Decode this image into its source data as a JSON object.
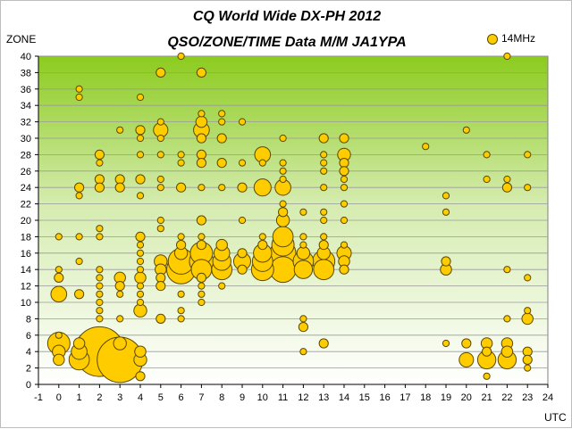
{
  "chart_data": {
    "type": "scatter",
    "title": "CQ World Wide DX-PH 2012",
    "subtitle": "QSO/ZONE/TIME Data M/M JA1YPA",
    "xlabel": "UTC",
    "ylabel": "ZONE",
    "xlim": [
      -1,
      24
    ],
    "ylim": [
      0,
      40
    ],
    "x_ticks": [
      -1,
      0,
      1,
      2,
      3,
      4,
      5,
      6,
      7,
      8,
      9,
      10,
      11,
      12,
      13,
      14,
      15,
      16,
      17,
      18,
      19,
      20,
      21,
      22,
      23,
      24
    ],
    "y_ticks": [
      0,
      2,
      4,
      6,
      8,
      10,
      12,
      14,
      16,
      18,
      20,
      22,
      24,
      26,
      28,
      30,
      32,
      34,
      36,
      38,
      40
    ],
    "grid": "horizontal",
    "legend": "top-right",
    "background": "vertical gradient, green at top to white at bottom",
    "size_note": "bubble size proportional to QSO count",
    "series": [
      {
        "name": "14MHz",
        "color": "#ffcc00",
        "stroke": "#5a4a00",
        "points": [
          {
            "x": 0,
            "y": 18,
            "size": 1
          },
          {
            "x": 0,
            "y": 14,
            "size": 1
          },
          {
            "x": 0,
            "y": 13,
            "size": 2
          },
          {
            "x": 0,
            "y": 11,
            "size": 6
          },
          {
            "x": 0,
            "y": 6,
            "size": 1
          },
          {
            "x": 0,
            "y": 5,
            "size": 12
          },
          {
            "x": 0,
            "y": 4,
            "size": 4
          },
          {
            "x": 0,
            "y": 3,
            "size": 3
          },
          {
            "x": 1,
            "y": 36,
            "size": 1
          },
          {
            "x": 1,
            "y": 35,
            "size": 1
          },
          {
            "x": 1,
            "y": 24,
            "size": 2
          },
          {
            "x": 1,
            "y": 23,
            "size": 1
          },
          {
            "x": 1,
            "y": 18,
            "size": 1
          },
          {
            "x": 1,
            "y": 15,
            "size": 1
          },
          {
            "x": 1,
            "y": 11,
            "size": 2
          },
          {
            "x": 1,
            "y": 5,
            "size": 3
          },
          {
            "x": 1,
            "y": 4,
            "size": 6
          },
          {
            "x": 1,
            "y": 3,
            "size": 10
          },
          {
            "x": 2,
            "y": 28,
            "size": 2
          },
          {
            "x": 2,
            "y": 27,
            "size": 1
          },
          {
            "x": 2,
            "y": 25,
            "size": 2
          },
          {
            "x": 2,
            "y": 24,
            "size": 2
          },
          {
            "x": 2,
            "y": 19,
            "size": 1
          },
          {
            "x": 2,
            "y": 18,
            "size": 1
          },
          {
            "x": 2,
            "y": 14,
            "size": 1
          },
          {
            "x": 2,
            "y": 13,
            "size": 1
          },
          {
            "x": 2,
            "y": 12,
            "size": 1
          },
          {
            "x": 2,
            "y": 11,
            "size": 1
          },
          {
            "x": 2,
            "y": 10,
            "size": 1
          },
          {
            "x": 2,
            "y": 9,
            "size": 1
          },
          {
            "x": 2,
            "y": 8,
            "size": 1
          },
          {
            "x": 2,
            "y": 4,
            "size": 60
          },
          {
            "x": 3,
            "y": 31,
            "size": 1
          },
          {
            "x": 3,
            "y": 25,
            "size": 2
          },
          {
            "x": 3,
            "y": 24,
            "size": 2
          },
          {
            "x": 3,
            "y": 13,
            "size": 3
          },
          {
            "x": 3,
            "y": 12,
            "size": 2
          },
          {
            "x": 3,
            "y": 11,
            "size": 1
          },
          {
            "x": 3,
            "y": 8,
            "size": 1
          },
          {
            "x": 3,
            "y": 5,
            "size": 4
          },
          {
            "x": 3,
            "y": 3,
            "size": 50
          },
          {
            "x": 4,
            "y": 35,
            "size": 1
          },
          {
            "x": 4,
            "y": 31,
            "size": 2
          },
          {
            "x": 4,
            "y": 30,
            "size": 1
          },
          {
            "x": 4,
            "y": 28,
            "size": 1
          },
          {
            "x": 4,
            "y": 25,
            "size": 2
          },
          {
            "x": 4,
            "y": 23,
            "size": 1
          },
          {
            "x": 4,
            "y": 18,
            "size": 2
          },
          {
            "x": 4,
            "y": 17,
            "size": 1
          },
          {
            "x": 4,
            "y": 16,
            "size": 1
          },
          {
            "x": 4,
            "y": 15,
            "size": 1
          },
          {
            "x": 4,
            "y": 14,
            "size": 1
          },
          {
            "x": 4,
            "y": 13,
            "size": 3
          },
          {
            "x": 4,
            "y": 12,
            "size": 1
          },
          {
            "x": 4,
            "y": 11,
            "size": 1
          },
          {
            "x": 4,
            "y": 10,
            "size": 1
          },
          {
            "x": 4,
            "y": 9,
            "size": 4
          },
          {
            "x": 4,
            "y": 4,
            "size": 3
          },
          {
            "x": 4,
            "y": 3,
            "size": 4
          },
          {
            "x": 4,
            "y": 1,
            "size": 2
          },
          {
            "x": 5,
            "y": 38,
            "size": 2
          },
          {
            "x": 5,
            "y": 32,
            "size": 1
          },
          {
            "x": 5,
            "y": 31,
            "size": 5
          },
          {
            "x": 5,
            "y": 30,
            "size": 1
          },
          {
            "x": 5,
            "y": 28,
            "size": 1
          },
          {
            "x": 5,
            "y": 25,
            "size": 1
          },
          {
            "x": 5,
            "y": 24,
            "size": 1
          },
          {
            "x": 5,
            "y": 20,
            "size": 1
          },
          {
            "x": 5,
            "y": 19,
            "size": 1
          },
          {
            "x": 5,
            "y": 15,
            "size": 4
          },
          {
            "x": 5,
            "y": 14,
            "size": 3
          },
          {
            "x": 5,
            "y": 13,
            "size": 2
          },
          {
            "x": 5,
            "y": 12,
            "size": 2
          },
          {
            "x": 5,
            "y": 8,
            "size": 2
          },
          {
            "x": 6,
            "y": 40,
            "size": 1
          },
          {
            "x": 6,
            "y": 28,
            "size": 1
          },
          {
            "x": 6,
            "y": 27,
            "size": 1
          },
          {
            "x": 6,
            "y": 24,
            "size": 2
          },
          {
            "x": 6,
            "y": 18,
            "size": 1
          },
          {
            "x": 6,
            "y": 17,
            "size": 2
          },
          {
            "x": 6,
            "y": 16,
            "size": 4
          },
          {
            "x": 6,
            "y": 15,
            "size": 16
          },
          {
            "x": 6,
            "y": 14,
            "size": 20
          },
          {
            "x": 6,
            "y": 11,
            "size": 1
          },
          {
            "x": 6,
            "y": 9,
            "size": 1
          },
          {
            "x": 6,
            "y": 8,
            "size": 1
          },
          {
            "x": 7,
            "y": 38,
            "size": 2
          },
          {
            "x": 7,
            "y": 33,
            "size": 1
          },
          {
            "x": 7,
            "y": 32,
            "size": 3
          },
          {
            "x": 7,
            "y": 31,
            "size": 6
          },
          {
            "x": 7,
            "y": 30,
            "size": 2
          },
          {
            "x": 7,
            "y": 28,
            "size": 2
          },
          {
            "x": 7,
            "y": 27,
            "size": 2
          },
          {
            "x": 7,
            "y": 24,
            "size": 1
          },
          {
            "x": 7,
            "y": 20,
            "size": 2
          },
          {
            "x": 7,
            "y": 18,
            "size": 1
          },
          {
            "x": 7,
            "y": 17,
            "size": 2
          },
          {
            "x": 7,
            "y": 16,
            "size": 12
          },
          {
            "x": 7,
            "y": 15,
            "size": 14
          },
          {
            "x": 7,
            "y": 14,
            "size": 10
          },
          {
            "x": 7,
            "y": 13,
            "size": 2
          },
          {
            "x": 7,
            "y": 12,
            "size": 1
          },
          {
            "x": 7,
            "y": 11,
            "size": 1
          },
          {
            "x": 7,
            "y": 10,
            "size": 1
          },
          {
            "x": 8,
            "y": 33,
            "size": 1
          },
          {
            "x": 8,
            "y": 32,
            "size": 1
          },
          {
            "x": 8,
            "y": 30,
            "size": 2
          },
          {
            "x": 8,
            "y": 27,
            "size": 2
          },
          {
            "x": 8,
            "y": 24,
            "size": 1
          },
          {
            "x": 8,
            "y": 17,
            "size": 3
          },
          {
            "x": 8,
            "y": 16,
            "size": 6
          },
          {
            "x": 8,
            "y": 15,
            "size": 8
          },
          {
            "x": 8,
            "y": 14,
            "size": 10
          },
          {
            "x": 8,
            "y": 12,
            "size": 1
          },
          {
            "x": 9,
            "y": 32,
            "size": 1
          },
          {
            "x": 9,
            "y": 27,
            "size": 1
          },
          {
            "x": 9,
            "y": 24,
            "size": 2
          },
          {
            "x": 9,
            "y": 20,
            "size": 1
          },
          {
            "x": 9,
            "y": 16,
            "size": 2
          },
          {
            "x": 9,
            "y": 15,
            "size": 7
          },
          {
            "x": 9,
            "y": 14,
            "size": 2
          },
          {
            "x": 10,
            "y": 28,
            "size": 6
          },
          {
            "x": 10,
            "y": 27,
            "size": 1
          },
          {
            "x": 10,
            "y": 24,
            "size": 7
          },
          {
            "x": 10,
            "y": 18,
            "size": 1
          },
          {
            "x": 10,
            "y": 17,
            "size": 2
          },
          {
            "x": 10,
            "y": 16,
            "size": 8
          },
          {
            "x": 10,
            "y": 15,
            "size": 10
          },
          {
            "x": 10,
            "y": 14,
            "size": 12
          },
          {
            "x": 11,
            "y": 30,
            "size": 1
          },
          {
            "x": 11,
            "y": 27,
            "size": 1
          },
          {
            "x": 11,
            "y": 26,
            "size": 1
          },
          {
            "x": 11,
            "y": 25,
            "size": 1
          },
          {
            "x": 11,
            "y": 24,
            "size": 6
          },
          {
            "x": 11,
            "y": 22,
            "size": 1
          },
          {
            "x": 11,
            "y": 21,
            "size": 2
          },
          {
            "x": 11,
            "y": 20,
            "size": 4
          },
          {
            "x": 11,
            "y": 18,
            "size": 10
          },
          {
            "x": 11,
            "y": 17,
            "size": 12
          },
          {
            "x": 11,
            "y": 16,
            "size": 16
          },
          {
            "x": 11,
            "y": 15,
            "size": 22
          },
          {
            "x": 11,
            "y": 14,
            "size": 16
          },
          {
            "x": 12,
            "y": 21,
            "size": 1
          },
          {
            "x": 12,
            "y": 18,
            "size": 1
          },
          {
            "x": 12,
            "y": 17,
            "size": 1
          },
          {
            "x": 12,
            "y": 16,
            "size": 4
          },
          {
            "x": 12,
            "y": 15,
            "size": 10
          },
          {
            "x": 12,
            "y": 14,
            "size": 8
          },
          {
            "x": 12,
            "y": 8,
            "size": 1
          },
          {
            "x": 12,
            "y": 7,
            "size": 2
          },
          {
            "x": 12,
            "y": 4,
            "size": 1
          },
          {
            "x": 13,
            "y": 30,
            "size": 2
          },
          {
            "x": 13,
            "y": 28,
            "size": 1
          },
          {
            "x": 13,
            "y": 27,
            "size": 1
          },
          {
            "x": 13,
            "y": 26,
            "size": 1
          },
          {
            "x": 13,
            "y": 24,
            "size": 1
          },
          {
            "x": 13,
            "y": 21,
            "size": 1
          },
          {
            "x": 13,
            "y": 20,
            "size": 1
          },
          {
            "x": 13,
            "y": 18,
            "size": 1
          },
          {
            "x": 13,
            "y": 17,
            "size": 2
          },
          {
            "x": 13,
            "y": 16,
            "size": 4
          },
          {
            "x": 13,
            "y": 15,
            "size": 12
          },
          {
            "x": 13,
            "y": 14,
            "size": 10
          },
          {
            "x": 13,
            "y": 5,
            "size": 2
          },
          {
            "x": 14,
            "y": 30,
            "size": 2
          },
          {
            "x": 14,
            "y": 28,
            "size": 4
          },
          {
            "x": 14,
            "y": 27,
            "size": 2
          },
          {
            "x": 14,
            "y": 26,
            "size": 2
          },
          {
            "x": 14,
            "y": 25,
            "size": 1
          },
          {
            "x": 14,
            "y": 24,
            "size": 1
          },
          {
            "x": 14,
            "y": 22,
            "size": 1
          },
          {
            "x": 14,
            "y": 20,
            "size": 1
          },
          {
            "x": 14,
            "y": 17,
            "size": 1
          },
          {
            "x": 14,
            "y": 16,
            "size": 5
          },
          {
            "x": 14,
            "y": 15,
            "size": 3
          },
          {
            "x": 14,
            "y": 14,
            "size": 2
          },
          {
            "x": 18,
            "y": 29,
            "size": 1
          },
          {
            "x": 19,
            "y": 23,
            "size": 1
          },
          {
            "x": 19,
            "y": 21,
            "size": 1
          },
          {
            "x": 19,
            "y": 15,
            "size": 2
          },
          {
            "x": 19,
            "y": 14,
            "size": 3
          },
          {
            "x": 19,
            "y": 5,
            "size": 1
          },
          {
            "x": 20,
            "y": 31,
            "size": 1
          },
          {
            "x": 20,
            "y": 5,
            "size": 2
          },
          {
            "x": 20,
            "y": 3,
            "size": 5
          },
          {
            "x": 21,
            "y": 28,
            "size": 1
          },
          {
            "x": 21,
            "y": 25,
            "size": 1
          },
          {
            "x": 21,
            "y": 5,
            "size": 3
          },
          {
            "x": 21,
            "y": 4,
            "size": 2
          },
          {
            "x": 21,
            "y": 3,
            "size": 8
          },
          {
            "x": 21,
            "y": 1,
            "size": 1
          },
          {
            "x": 22,
            "y": 40,
            "size": 1
          },
          {
            "x": 22,
            "y": 25,
            "size": 1
          },
          {
            "x": 22,
            "y": 24,
            "size": 2
          },
          {
            "x": 22,
            "y": 14,
            "size": 1
          },
          {
            "x": 22,
            "y": 8,
            "size": 1
          },
          {
            "x": 22,
            "y": 5,
            "size": 3
          },
          {
            "x": 22,
            "y": 4,
            "size": 3
          },
          {
            "x": 22,
            "y": 3,
            "size": 8
          },
          {
            "x": 23,
            "y": 28,
            "size": 1
          },
          {
            "x": 23,
            "y": 24,
            "size": 1
          },
          {
            "x": 23,
            "y": 13,
            "size": 1
          },
          {
            "x": 23,
            "y": 9,
            "size": 1
          },
          {
            "x": 23,
            "y": 8,
            "size": 3
          },
          {
            "x": 23,
            "y": 4,
            "size": 2
          },
          {
            "x": 23,
            "y": 3,
            "size": 2
          },
          {
            "x": 23,
            "y": 2,
            "size": 1
          }
        ]
      }
    ]
  }
}
